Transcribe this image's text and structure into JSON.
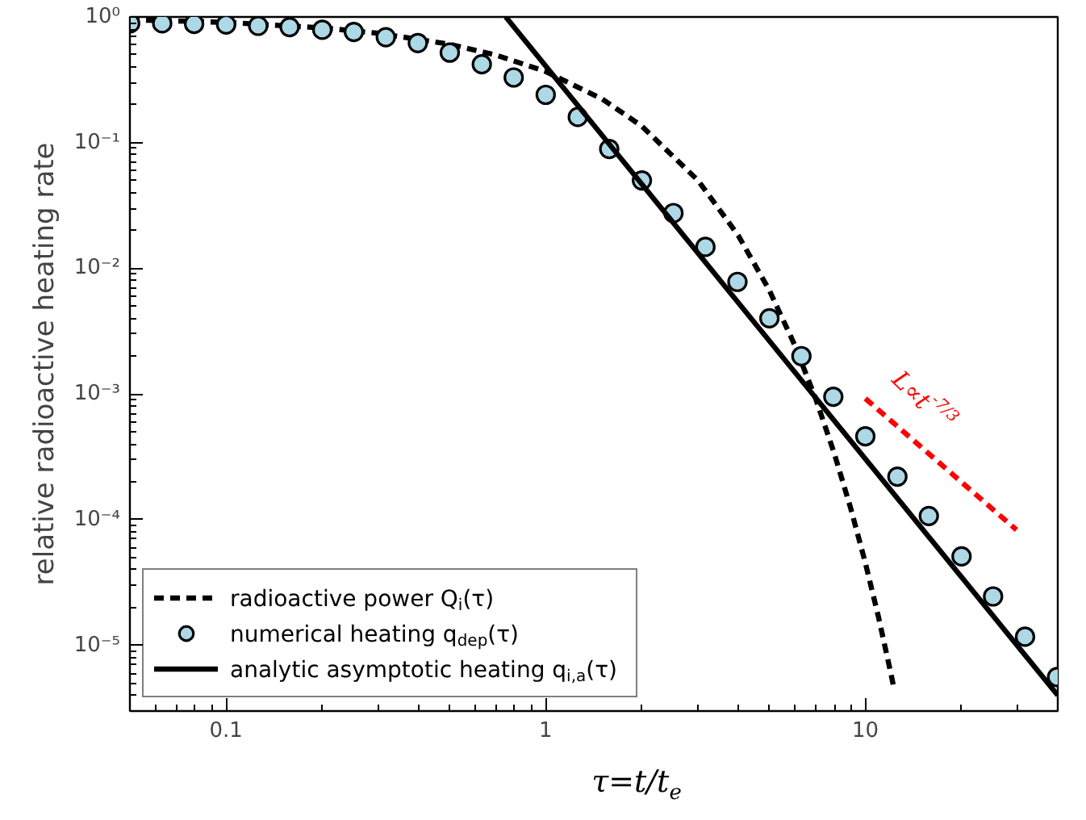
{
  "chart_data": {
    "type": "line",
    "xlabel": "τ=t/t$_{e}$",
    "ylabel": "relative radioactive heating rate",
    "log": "xy",
    "xlim": [
      0.05,
      40
    ],
    "ylim": [
      3e-06,
      1
    ],
    "xticks": [
      0.1,
      1,
      10
    ],
    "yticks": [
      {
        "value": 1,
        "label": "10⁰"
      },
      {
        "value": 0.1,
        "label": "10⁻¹"
      },
      {
        "value": 0.01,
        "label": "10⁻²"
      },
      {
        "value": 0.001,
        "label": "10⁻³"
      },
      {
        "value": 0.0001,
        "label": "10⁻⁴"
      },
      {
        "value": 1e-05,
        "label": "10⁻⁵"
      }
    ],
    "grid": false,
    "legend": "bottom left",
    "series": [
      {
        "name": "radioactive power Q$_{i}$(τ)",
        "line_style": "dashed",
        "color": "#000000",
        "x": [
          0.05,
          0.1,
          0.2,
          0.3,
          0.5,
          0.7,
          1,
          1.5,
          2,
          3,
          4,
          5,
          6,
          7,
          8,
          9,
          10,
          11,
          12,
          12.3
        ],
        "values": [
          0.951,
          0.905,
          0.819,
          0.741,
          0.607,
          0.497,
          0.368,
          0.223,
          0.135,
          0.0498,
          0.0183,
          0.00674,
          0.00248,
          0.000912,
          0.000335,
          0.000123,
          4.54e-05,
          1.67e-05,
          6.1e-06,
          4.5e-06
        ]
      },
      {
        "name": "numerical heating q$_{dep}$(τ)",
        "type": "scatter",
        "marker": "circle",
        "color": "#add8e6",
        "x": [
          0.0501,
          0.0631,
          0.0794,
          0.1,
          0.126,
          0.158,
          0.2,
          0.251,
          0.316,
          0.398,
          0.501,
          0.631,
          0.794,
          1,
          1.26,
          1.58,
          2,
          2.51,
          3.16,
          3.98,
          5.01,
          6.31,
          7.94,
          10,
          12.6,
          15.8,
          20,
          25.1,
          31.6,
          39.8
        ],
        "values": [
          0.89,
          0.89,
          0.88,
          0.87,
          0.85,
          0.83,
          0.79,
          0.76,
          0.69,
          0.62,
          0.52,
          0.42,
          0.33,
          0.24,
          0.16,
          0.089,
          0.05,
          0.0275,
          0.0148,
          0.0078,
          0.004,
          0.002,
          0.00095,
          0.00046,
          0.00022,
          0.000107,
          5.1e-05,
          2.45e-05,
          1.17e-05,
          5.6e-06
        ]
      },
      {
        "name": "analytic asymptotic heating q$_{i,a}$(τ)",
        "line_style": "solid",
        "color": "#000000",
        "x": [
          0.75,
          40
        ],
        "values": [
          1,
          4e-06
        ]
      },
      {
        "line_style": "dashed",
        "color": "#ff0000",
        "x": [
          10,
          29.7
        ],
        "values": [
          0.00092,
          8.3e-05
        ]
      }
    ],
    "annotations": [
      "L∝t$^{-7/3}$"
    ]
  }
}
